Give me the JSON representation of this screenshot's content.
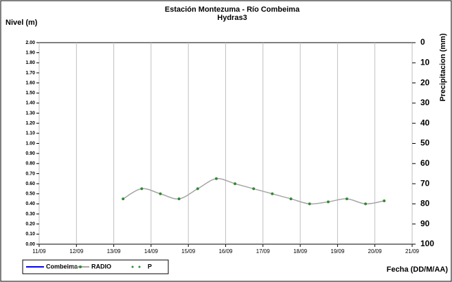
{
  "chart_data": {
    "type": "line",
    "title": "Estación Montezuma - Río Combeima",
    "subtitle": "Hydras3",
    "y_label": "Nivel (m)",
    "y2_label": "Precipitacion (mm)",
    "x_label": "Fecha (DD/M/AA)",
    "x": [
      13.25,
      13.75,
      14.25,
      14.75,
      15.25,
      15.75,
      16.25,
      16.75,
      17.25,
      17.75,
      18.25,
      18.75,
      19.25,
      19.75,
      20.25
    ],
    "series": [
      {
        "name": "Combeima",
        "color": "#0000ff",
        "values": [
          null,
          null,
          null,
          null,
          null,
          null,
          null,
          null,
          null,
          null,
          null,
          null,
          null,
          null,
          null
        ]
      },
      {
        "name": "RADIO",
        "color": "#a6a6a6",
        "marker_color": "#2e8b2e",
        "values": [
          0.45,
          0.55,
          0.5,
          0.45,
          0.55,
          0.65,
          0.6,
          0.55,
          0.5,
          0.45,
          0.4,
          0.42,
          0.45,
          0.4,
          0.43
        ]
      },
      {
        "name": "P",
        "color": "#2e8b2e",
        "axis": "y2",
        "values": [
          null,
          null,
          null,
          null,
          null,
          null,
          null,
          null,
          null,
          null,
          null,
          null,
          null,
          null,
          null
        ]
      }
    ],
    "xlim": [
      11,
      21
    ],
    "xticks": [
      {
        "value": 11,
        "label": "11/09"
      },
      {
        "value": 12,
        "label": "12/09"
      },
      {
        "value": 13,
        "label": "13/09"
      },
      {
        "value": 14,
        "label": "14/09"
      },
      {
        "value": 15,
        "label": "15/09"
      },
      {
        "value": 16,
        "label": "16/09"
      },
      {
        "value": 17,
        "label": "17/09"
      },
      {
        "value": 18,
        "label": "18/09"
      },
      {
        "value": 19,
        "label": "19/09"
      },
      {
        "value": 20,
        "label": "20/09"
      },
      {
        "value": 21,
        "label": "21/09"
      }
    ],
    "ylim": [
      0,
      2
    ],
    "yticks": [
      {
        "value": 0,
        "label": "0.00"
      },
      {
        "value": 0.1,
        "label": "0.10"
      },
      {
        "value": 0.2,
        "label": "0.20"
      },
      {
        "value": 0.3,
        "label": "0.30"
      },
      {
        "value": 0.4,
        "label": "0.40"
      },
      {
        "value": 0.5,
        "label": "0.50"
      },
      {
        "value": 0.6,
        "label": "0.60"
      },
      {
        "value": 0.7,
        "label": "0.70"
      },
      {
        "value": 0.8,
        "label": "0.80"
      },
      {
        "value": 0.9,
        "label": "0.90"
      },
      {
        "value": 1.0,
        "label": "1.00"
      },
      {
        "value": 1.1,
        "label": "1.10"
      },
      {
        "value": 1.2,
        "label": "1.20"
      },
      {
        "value": 1.3,
        "label": "1.30"
      },
      {
        "value": 1.4,
        "label": "1.40"
      },
      {
        "value": 1.5,
        "label": "1.50"
      },
      {
        "value": 1.6,
        "label": "1.60"
      },
      {
        "value": 1.7,
        "label": "1.70"
      },
      {
        "value": 1.8,
        "label": "1.80"
      },
      {
        "value": 1.9,
        "label": "1.90"
      },
      {
        "value": 2.0,
        "label": "2.00"
      }
    ],
    "y2lim": [
      100,
      0
    ],
    "y2ticks": [
      0,
      10,
      20,
      30,
      40,
      50,
      60,
      70,
      80,
      90,
      100
    ],
    "grid": "x"
  }
}
